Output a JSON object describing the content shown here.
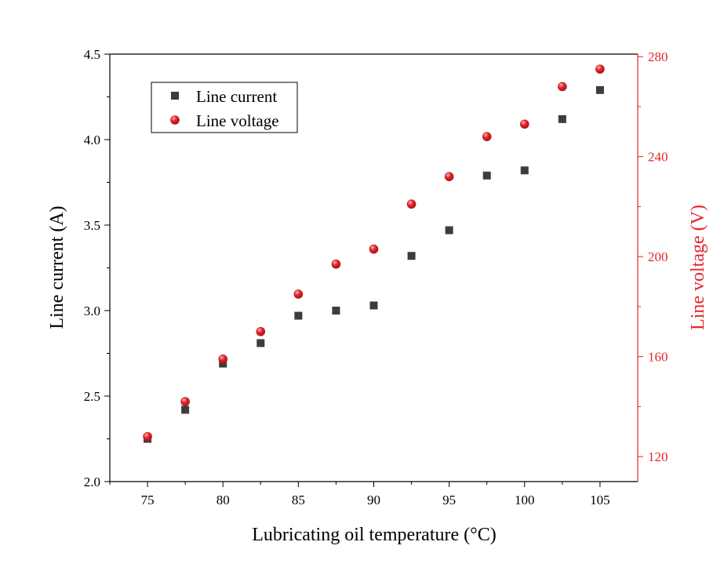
{
  "chart_data": {
    "type": "scatter",
    "xlabel": "Lubricating oil temperature (°C)",
    "ylabel": "Line current (A)",
    "y2label": "Line voltage (V)",
    "xlim": [
      72.5,
      107.5
    ],
    "ylim": [
      2.0,
      4.5
    ],
    "y2lim": [
      110,
      281
    ],
    "x_ticks": [
      75,
      80,
      85,
      90,
      95,
      100,
      105
    ],
    "y_ticks": [
      2.0,
      2.5,
      3.0,
      3.5,
      4.0,
      4.5
    ],
    "y2_ticks": [
      120,
      160,
      200,
      240,
      280
    ],
    "y_tick_labels": [
      "2.0",
      "2.5",
      "3.0",
      "3.5",
      "4.0",
      "4.5"
    ],
    "grid": false,
    "legend_position": "top-left",
    "colors": {
      "current": "#3c3c3c",
      "voltage": "#e5262b",
      "voltage_axis": "#e5262b"
    },
    "x": [
      75,
      77.5,
      80,
      82.5,
      85,
      87.5,
      90,
      92.5,
      95,
      97.5,
      100,
      102.5,
      105
    ],
    "series": [
      {
        "name": "Line current",
        "axis": "left",
        "marker": "square",
        "values": [
          2.25,
          2.42,
          2.69,
          2.81,
          2.97,
          3.0,
          3.03,
          3.32,
          3.47,
          3.79,
          3.82,
          4.12,
          4.29
        ]
      },
      {
        "name": "Line voltage",
        "axis": "right",
        "marker": "circle",
        "values": [
          128,
          142,
          159,
          170,
          185,
          197,
          203,
          221,
          232,
          248,
          253,
          268,
          275
        ]
      }
    ]
  }
}
